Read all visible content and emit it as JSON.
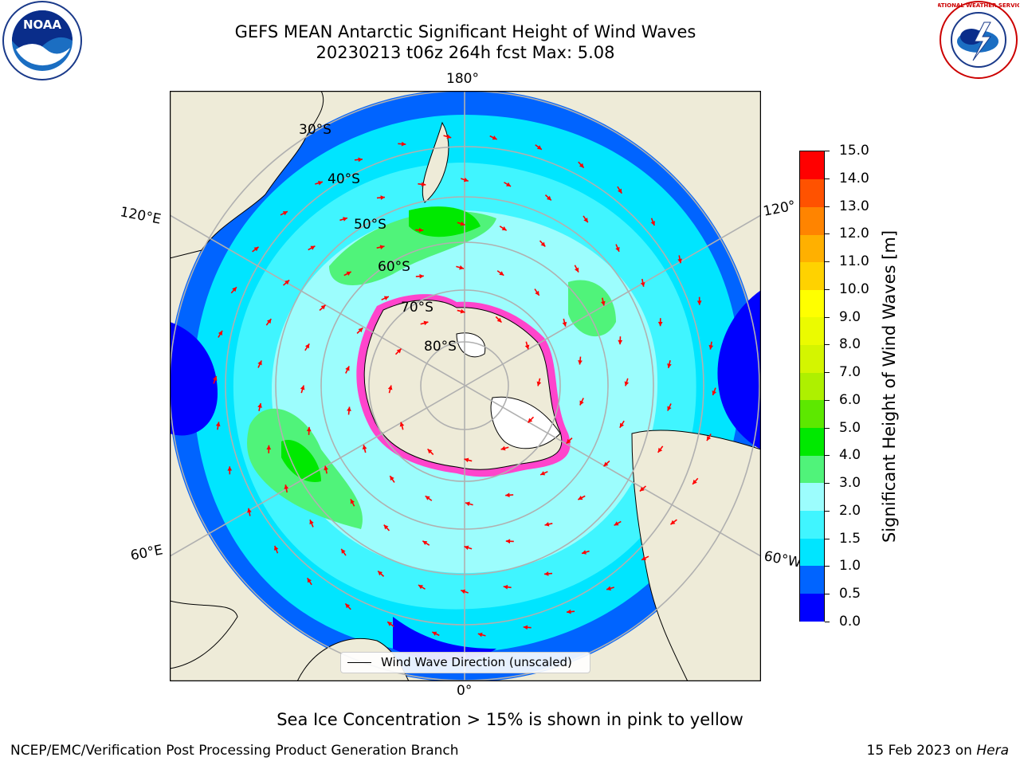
{
  "header": {
    "title_line1": "GEFS MEAN Antarctic Significant Height of Wind Waves",
    "title_line2": "20230213 t06z 264h fcst   Max: 5.08"
  },
  "map": {
    "projection": "south-polar-stereographic",
    "longitude_labels": {
      "top": "180°",
      "bottom": "0°",
      "upper_left": "120°E",
      "lower_left": "60°E",
      "upper_right": "120°",
      "lower_right": "60°W"
    },
    "latitude_labels": [
      "30°S",
      "40°S",
      "50°S",
      "60°S",
      "70°S",
      "80°S"
    ],
    "colors": {
      "land": "#eeebd8",
      "ocean_deep": "#0000ff",
      "ice": "#ff44cc"
    }
  },
  "legend": {
    "label": "Wind Wave Direction (unscaled)"
  },
  "colorbar": {
    "label": "Significant Height of Wind Waves [m]",
    "ticks": [
      "0.0",
      "0.5",
      "1.0",
      "1.5",
      "2.0",
      "3.0",
      "4.0",
      "5.0",
      "6.0",
      "7.0",
      "8.0",
      "9.0",
      "10.0",
      "11.0",
      "12.0",
      "13.0",
      "14.0",
      "15.0"
    ],
    "colors": [
      "#0000ff",
      "#0064ff",
      "#00e5ff",
      "#40f5ff",
      "#9cfdfd",
      "#50f37a",
      "#00e900",
      "#5de800",
      "#aef000",
      "#d4f500",
      "#ebfb00",
      "#ffff00",
      "#ffd200",
      "#ffb000",
      "#ff8400",
      "#ff5200",
      "#ff0000"
    ]
  },
  "logos": {
    "noaa_text": "NOAA",
    "nws_text": "NATIONAL WEATHER SERVICE"
  },
  "subtitle": "Sea Ice Concentration > 15% is shown in pink to yellow",
  "footer": {
    "left": "NCEP/EMC/Verification Post Processing Product Generation Branch",
    "right_prefix": "15 Feb 2023 on ",
    "right_host": "Hera"
  }
}
